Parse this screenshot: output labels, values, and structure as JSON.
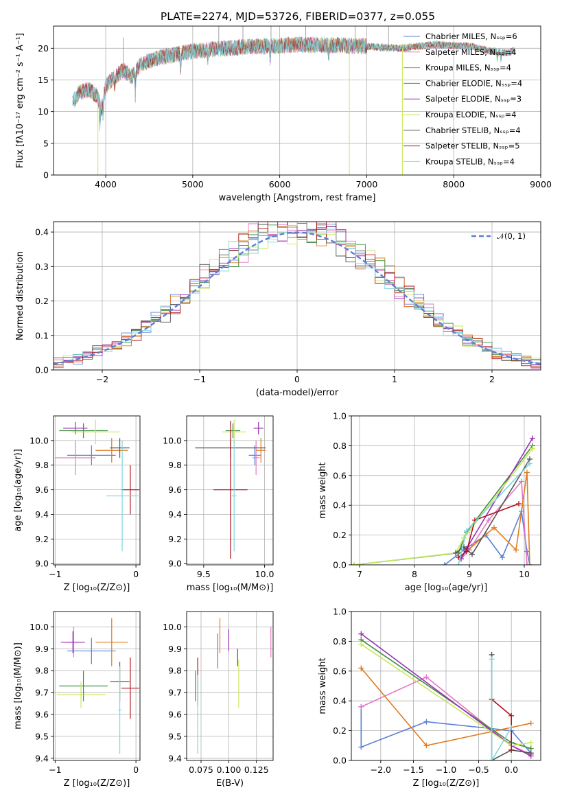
{
  "figure": {
    "title": "PLATE=2274, MJD=53726, FIBERID=0377, z=0.055"
  },
  "colors": {
    "Chabrier MILES": "#5b7fd6",
    "Salpeter MILES": "#e377c2",
    "Kroupa MILES": "#e07a1f",
    "Chabrier ELODIE": "#3f8f3f",
    "Salpeter ELODIE": "#9a2fb5",
    "Kroupa ELODIE": "#c8e65a",
    "Chabrier STELIB": "#555555",
    "Salpeter STELIB": "#b0121b",
    "Kroupa STELIB": "#7fd6dc",
    "normal": "#5b7fd6"
  },
  "chart_data": [
    {
      "id": "spectrum",
      "type": "line",
      "xlabel": "wavelength [Angstrom, rest frame]",
      "ylabel": "Flux [fλ10⁻¹⁷ erg cm⁻² s⁻¹ A⁻¹]",
      "xlim": [
        3400,
        9000
      ],
      "ylim": [
        0,
        23.5
      ],
      "xticks": [
        4000,
        5000,
        6000,
        7000,
        8000,
        9000
      ],
      "yticks": [
        0,
        5,
        10,
        15,
        20
      ],
      "legend_position": "top-right",
      "series": [
        {
          "name": "Chabrier MILES, Nₛₛₚ=6",
          "key": "Chabrier MILES"
        },
        {
          "name": "Salpeter MILES, Nₛₛₚ=4",
          "key": "Salpeter MILES"
        },
        {
          "name": "Kroupa MILES, Nₛₛₚ=4",
          "key": "Kroupa MILES"
        },
        {
          "name": "Chabrier ELODIE, Nₛₛₚ=4",
          "key": "Chabrier ELODIE"
        },
        {
          "name": "Salpeter ELODIE, Nₛₛₚ=3",
          "key": "Salpeter ELODIE"
        },
        {
          "name": "Kroupa ELODIE, Nₛₛₚ=4",
          "key": "Kroupa ELODIE"
        },
        {
          "name": "Chabrier STELIB, Nₛₛₚ=4",
          "key": "Chabrier STELIB"
        },
        {
          "name": "Salpeter STELIB, Nₛₛₚ=5",
          "key": "Salpeter STELIB"
        },
        {
          "name": "Kroupa STELIB, Nₛₛₚ=4",
          "key": "Kroupa STELIB"
        }
      ],
      "continuum": {
        "x": [
          3620,
          3700,
          3800,
          3900,
          3950,
          4000,
          4100,
          4200,
          4300,
          4400,
          4500,
          4600,
          4800,
          5000,
          5200,
          5400,
          5600,
          5800,
          6000,
          6200,
          6400,
          6600,
          6800,
          7000,
          7200,
          7400,
          7600,
          7800,
          8000,
          8200,
          8400,
          8600,
          8700
        ],
        "y": [
          11.5,
          13.0,
          13.5,
          12.5,
          10.5,
          14.0,
          15.5,
          16.5,
          15.5,
          17.5,
          18.0,
          18.5,
          19.0,
          19.5,
          19.8,
          20.0,
          20.2,
          20.3,
          20.4,
          20.6,
          20.5,
          20.5,
          20.4,
          20.3,
          20.1,
          20.0,
          20.3,
          20.6,
          20.4,
          20.3,
          19.6,
          19.3,
          19.6
        ]
      },
      "deep_dips": [
        {
          "x": 3910,
          "y": 0
        },
        {
          "x": 6800,
          "y": 0
        },
        {
          "x": 7410,
          "y": 0
        }
      ]
    },
    {
      "id": "residuals",
      "type": "histogram",
      "xlabel": "(data-model)/error",
      "ylabel": "Normed distribution",
      "xlim": [
        -2.5,
        2.5
      ],
      "ylim": [
        0,
        0.43
      ],
      "xticks": [
        -2,
        -1,
        0,
        1,
        2
      ],
      "yticks": [
        0.0,
        0.1,
        0.2,
        0.3,
        0.4
      ],
      "legend": "𝒩(0, 1)",
      "legend_position": "top-right",
      "bin_edges_start": -2.5,
      "bin_width": 0.1,
      "bin_count": 50
    },
    {
      "id": "age_vs_z",
      "type": "errorbar",
      "xlabel": "Z [log₁₀(Z/Z⊙)]",
      "ylabel": "age  [log₁₀(age/yr)]",
      "xlim": [
        -1.02,
        0.05
      ],
      "ylim": [
        8.99,
        10.2
      ],
      "xticks": [
        -1,
        0
      ],
      "yticks": [
        9.0,
        9.2,
        9.4,
        9.6,
        9.8,
        10.0
      ],
      "points": [
        {
          "key": "Chabrier MILES",
          "x": -0.55,
          "y": 9.88,
          "xerr": 0.3,
          "yerr": 0.08
        },
        {
          "key": "Salpeter MILES",
          "x": -0.75,
          "y": 9.86,
          "xerr": 0.25,
          "yerr": 0.14
        },
        {
          "key": "Kroupa MILES",
          "x": -0.3,
          "y": 9.92,
          "xerr": 0.2,
          "yerr": 0.1
        },
        {
          "key": "Chabrier ELODIE",
          "x": -0.65,
          "y": 10.08,
          "xerr": 0.3,
          "yerr": 0.06
        },
        {
          "key": "Salpeter ELODIE",
          "x": -0.75,
          "y": 10.1,
          "xerr": 0.15,
          "yerr": 0.05
        },
        {
          "key": "Kroupa ELODIE",
          "x": -0.5,
          "y": 10.07,
          "xerr": 0.3,
          "yerr": 0.1
        },
        {
          "key": "Chabrier STELIB",
          "x": -0.2,
          "y": 9.94,
          "xerr": 0.12,
          "yerr": 0.08
        },
        {
          "key": "Salpeter STELIB",
          "x": -0.07,
          "y": 9.6,
          "xerr": 0.11,
          "yerr": 0.2
        },
        {
          "key": "Kroupa STELIB",
          "x": -0.17,
          "y": 9.55,
          "xerr": 0.2,
          "yerr": 0.45
        }
      ]
    },
    {
      "id": "age_vs_mass",
      "type": "errorbar",
      "xlabel": "mass [log₁₀(M/M⊙)]",
      "ylabel": "",
      "xlim": [
        9.36,
        10.07
      ],
      "ylim": [
        8.99,
        10.2
      ],
      "xticks": [
        9.5,
        10.0
      ],
      "yticks": [
        9.0,
        9.2,
        9.4,
        9.6,
        9.8,
        10.0
      ],
      "points": [
        {
          "key": "Chabrier MILES",
          "x": 9.92,
          "y": 9.88,
          "xerr": 0.05,
          "yerr": 0.08
        },
        {
          "key": "Salpeter MILES",
          "x": 9.93,
          "y": 9.86,
          "xerr": 0.03,
          "yerr": 0.14
        },
        {
          "key": "Kroupa MILES",
          "x": 9.97,
          "y": 9.92,
          "xerr": 0.04,
          "yerr": 0.1
        },
        {
          "key": "Chabrier ELODIE",
          "x": 9.74,
          "y": 10.08,
          "xerr": 0.06,
          "yerr": 0.06
        },
        {
          "key": "Salpeter ELODIE",
          "x": 9.95,
          "y": 10.1,
          "xerr": 0.04,
          "yerr": 0.05
        },
        {
          "key": "Kroupa ELODIE",
          "x": 9.75,
          "y": 10.07,
          "xerr": 0.1,
          "yerr": 0.1
        },
        {
          "key": "Chabrier STELIB",
          "x": 9.72,
          "y": 9.94,
          "xerr": 0.29,
          "yerr": 0.08
        },
        {
          "key": "Salpeter STELIB",
          "x": 9.72,
          "y": 9.6,
          "xerr": 0.14,
          "yerr": 0.56
        },
        {
          "key": "Kroupa STELIB",
          "x": 9.75,
          "y": 9.55,
          "xerr": 0.02,
          "yerr": 0.45
        }
      ]
    },
    {
      "id": "weight_vs_age",
      "type": "line",
      "xlabel": "age  [log₁₀(age/yr)]",
      "ylabel": "mass weight",
      "xlim": [
        6.85,
        10.3
      ],
      "ylim": [
        0,
        1.0
      ],
      "xticks": [
        7,
        8,
        9,
        10
      ],
      "yticks": [
        0.0,
        0.2,
        0.4,
        0.6,
        0.8,
        1.0
      ],
      "series": [
        {
          "key": "Chabrier MILES",
          "x": [
            8.55,
            8.9,
            9.3,
            9.6,
            9.95,
            10.05,
            10.1
          ],
          "y": [
            0.0,
            0.1,
            0.2,
            0.05,
            0.36,
            0.09,
            0.0
          ]
        },
        {
          "key": "Salpeter MILES",
          "x": [
            8.85,
            9.0,
            9.35,
            9.95,
            10.05
          ],
          "y": [
            0.04,
            0.1,
            0.3,
            0.56,
            0.0
          ]
        },
        {
          "key": "Kroupa MILES",
          "x": [
            8.85,
            9.45,
            9.85,
            10.05,
            10.1
          ],
          "y": [
            0.06,
            0.25,
            0.1,
            0.62,
            0.0
          ]
        },
        {
          "key": "Chabrier ELODIE",
          "x": [
            6.9,
            8.8,
            8.95,
            10.15
          ],
          "y": [
            0.0,
            0.08,
            0.22,
            0.8
          ]
        },
        {
          "key": "Salpeter ELODIE",
          "x": [
            8.85,
            8.95,
            10.15
          ],
          "y": [
            0.04,
            0.11,
            0.85
          ]
        },
        {
          "key": "Kroupa ELODIE",
          "x": [
            6.9,
            8.75,
            8.9,
            10.15
          ],
          "y": [
            0.0,
            0.08,
            0.18,
            0.78
          ]
        },
        {
          "key": "Chabrier STELIB",
          "x": [
            8.75,
            8.9,
            9.05,
            10.1
          ],
          "y": [
            0.08,
            0.12,
            0.07,
            0.71
          ]
        },
        {
          "key": "Salpeter STELIB",
          "x": [
            8.8,
            8.95,
            9.1,
            9.9
          ],
          "y": [
            0.05,
            0.09,
            0.3,
            0.41
          ]
        },
        {
          "key": "Kroupa STELIB",
          "x": [
            8.8,
            8.95,
            10.1
          ],
          "y": [
            0.0,
            0.23,
            0.68
          ]
        }
      ]
    },
    {
      "id": "mass_vs_z",
      "type": "errorbar",
      "xlabel": "Z [log₁₀(Z/Z⊙)]",
      "ylabel": "mass [log₁₀(M/M⊙)]",
      "xlim": [
        -1.02,
        0.05
      ],
      "ylim": [
        9.39,
        10.07
      ],
      "xticks": [
        -1,
        0
      ],
      "yticks": [
        9.4,
        9.5,
        9.6,
        9.7,
        9.8,
        9.9,
        10.0
      ],
      "points": [
        {
          "key": "Chabrier MILES",
          "x": -0.55,
          "y": 9.89,
          "xerr": 0.3,
          "yerr": 0.06
        },
        {
          "key": "Salpeter MILES",
          "x": -0.77,
          "y": 9.93,
          "xerr": 0.1,
          "yerr": 0.07
        },
        {
          "key": "Kroupa MILES",
          "x": -0.3,
          "y": 9.93,
          "xerr": 0.2,
          "yerr": 0.11
        },
        {
          "key": "Chabrier ELODIE",
          "x": -0.65,
          "y": 9.73,
          "xerr": 0.3,
          "yerr": 0.07
        },
        {
          "key": "Salpeter ELODIE",
          "x": -0.78,
          "y": 9.93,
          "xerr": 0.15,
          "yerr": 0.05
        },
        {
          "key": "Kroupa ELODIE",
          "x": -0.68,
          "y": 9.69,
          "xerr": 0.3,
          "yerr": 0.06
        },
        {
          "key": "Chabrier STELIB",
          "x": -0.2,
          "y": 9.75,
          "xerr": 0.12,
          "yerr": 0.09
        },
        {
          "key": "Salpeter STELIB",
          "x": -0.07,
          "y": 9.72,
          "xerr": 0.11,
          "yerr": 0.14
        },
        {
          "key": "Kroupa STELIB",
          "x": -0.2,
          "y": 9.62,
          "xerr": 0.02,
          "yerr": 0.2
        }
      ]
    },
    {
      "id": "mass_vs_ebv",
      "type": "errorbar",
      "xlabel": "E(B-V)",
      "ylabel": "",
      "xlim": [
        0.062,
        0.14
      ],
      "ylim": [
        9.39,
        10.07
      ],
      "xticks": [
        0.075,
        0.1,
        0.125
      ],
      "xtick_labels": [
        "0.075",
        "0.100",
        "0.125"
      ],
      "yticks": [
        9.4,
        9.5,
        9.6,
        9.7,
        9.8,
        9.9,
        10.0
      ],
      "points": [
        {
          "key": "Chabrier MILES",
          "x": 0.09,
          "y": 9.89,
          "yerr": 0.08
        },
        {
          "key": "Salpeter MILES",
          "x": 0.138,
          "y": 9.93,
          "yerr": 0.07
        },
        {
          "key": "Kroupa MILES",
          "x": 0.092,
          "y": 9.96,
          "yerr": 0.08
        },
        {
          "key": "Chabrier ELODIE",
          "x": 0.07,
          "y": 9.73,
          "yerr": 0.07
        },
        {
          "key": "Salpeter ELODIE",
          "x": 0.1,
          "y": 9.94,
          "yerr": 0.05
        },
        {
          "key": "Kroupa ELODIE",
          "x": 0.109,
          "y": 9.74,
          "yerr": 0.11
        },
        {
          "key": "Chabrier STELIB",
          "x": 0.108,
          "y": 9.86,
          "yerr": 0.04
        },
        {
          "key": "Salpeter STELIB",
          "x": 0.072,
          "y": 9.75,
          "yerr": 0.11
        },
        {
          "key": "Kroupa STELIB",
          "x": 0.072,
          "y": 9.6,
          "yerr": 0.18
        }
      ]
    },
    {
      "id": "weight_vs_z",
      "type": "line",
      "xlabel": "Z [log₁₀(Z/Z⊙)]",
      "ylabel": "mass weight",
      "xlim": [
        -2.45,
        0.45
      ],
      "ylim": [
        0,
        1.0
      ],
      "xticks": [
        -2.0,
        -1.5,
        -1.0,
        -0.5,
        0.0
      ],
      "xtick_labels": [
        "−2.0",
        "−1.5",
        "−1.0",
        "−0.5",
        "0.0"
      ],
      "yticks": [
        0.0,
        0.2,
        0.4,
        0.6,
        0.8,
        1.0
      ],
      "series": [
        {
          "key": "Chabrier MILES",
          "x": [
            -2.3,
            -2.3,
            -1.3,
            0.0,
            0.0,
            0.3
          ],
          "y": [
            0.36,
            0.09,
            0.26,
            0.2,
            0.2,
            0.05
          ]
        },
        {
          "key": "Salpeter MILES",
          "x": [
            -2.3,
            -1.3,
            0.0,
            0.3
          ],
          "y": [
            0.36,
            0.56,
            0.1,
            0.04
          ]
        },
        {
          "key": "Kroupa MILES",
          "x": [
            -2.3,
            -1.3,
            0.3
          ],
          "y": [
            0.62,
            0.1,
            0.25
          ]
        },
        {
          "key": "Chabrier ELODIE",
          "x": [
            -2.3,
            0.0,
            0.3
          ],
          "y": [
            0.81,
            0.12,
            0.08
          ]
        },
        {
          "key": "Salpeter ELODIE",
          "x": [
            -2.3,
            0.0,
            0.3
          ],
          "y": [
            0.85,
            0.1,
            0.03
          ]
        },
        {
          "key": "Kroupa ELODIE",
          "x": [
            -2.3,
            0.0,
            0.3
          ],
          "y": [
            0.78,
            0.1,
            0.12
          ]
        },
        {
          "key": "Chabrier STELIB",
          "x": [
            -0.3,
            -0.3,
            0.0,
            0.3
          ],
          "y": [
            0.71,
            0.0,
            0.07,
            0.05
          ]
        },
        {
          "key": "Salpeter STELIB",
          "x": [
            -0.3,
            0.0,
            0.0
          ],
          "y": [
            0.41,
            0.3,
            0.07
          ]
        },
        {
          "key": "Kroupa STELIB",
          "x": [
            -0.3,
            -0.3,
            0.0
          ],
          "y": [
            0.68,
            0.0,
            0.22
          ]
        }
      ]
    }
  ]
}
